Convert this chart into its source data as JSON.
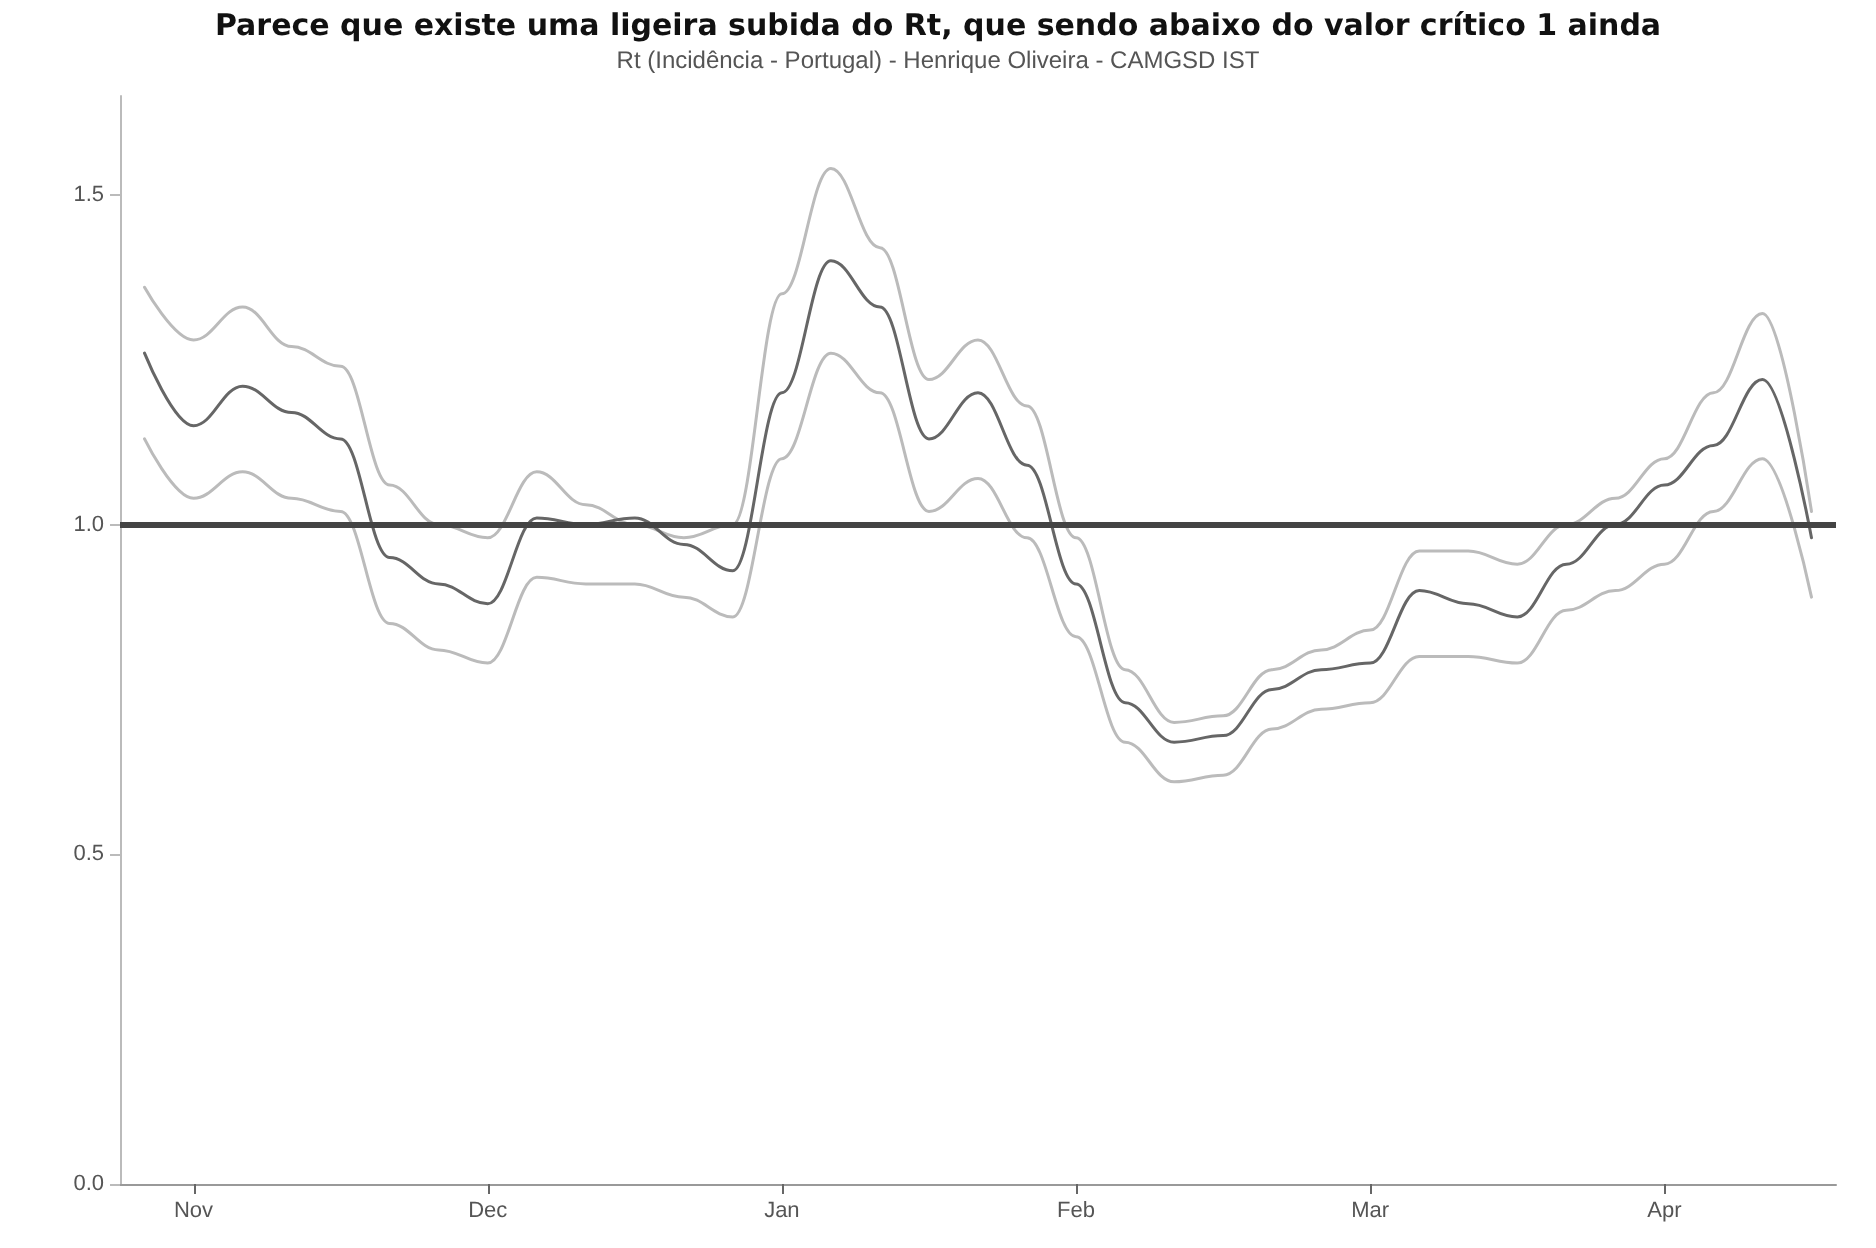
{
  "chart_data": {
    "type": "line",
    "title": "Parece que existe uma ligeira subida do Rt, que sendo abaixo do valor crítico 1 ainda",
    "subtitle": "Rt (Incidência - Portugal) - Henrique Oliveira - CAMGSD IST",
    "categories": [
      null,
      "Nov",
      null,
      null,
      null,
      null,
      null,
      "Dec",
      null,
      null,
      null,
      null,
      null,
      "Jan",
      null,
      null,
      null,
      null,
      null,
      "Feb",
      null,
      null,
      null,
      null,
      null,
      "Mar",
      null,
      null,
      null,
      null,
      null,
      "Apr",
      null,
      null,
      null
    ],
    "series": [
      {
        "color": "#bbbbbb",
        "values": [
          1.36,
          1.28,
          1.33,
          1.27,
          1.24,
          1.06,
          1.0,
          0.98,
          1.08,
          1.03,
          1.0,
          0.98,
          1.0,
          1.35,
          1.54,
          1.42,
          1.22,
          1.28,
          1.18,
          0.98,
          0.78,
          0.7,
          0.71,
          0.78,
          0.81,
          0.84,
          0.96,
          0.96,
          0.94,
          1.0,
          1.04,
          1.1,
          1.2,
          1.32,
          1.02
        ]
      },
      {
        "color": "#666666",
        "values": [
          1.26,
          1.15,
          1.21,
          1.17,
          1.13,
          0.95,
          0.91,
          0.88,
          1.01,
          1.0,
          1.01,
          0.97,
          0.93,
          1.2,
          1.4,
          1.33,
          1.13,
          1.2,
          1.09,
          0.91,
          0.73,
          0.67,
          0.68,
          0.75,
          0.78,
          0.79,
          0.9,
          0.88,
          0.86,
          0.94,
          1.0,
          1.06,
          1.12,
          1.22,
          0.98
        ]
      },
      {
        "color": "#bbbbbb",
        "values": [
          1.13,
          1.04,
          1.08,
          1.04,
          1.02,
          0.85,
          0.81,
          0.79,
          0.92,
          0.91,
          0.91,
          0.89,
          0.86,
          1.1,
          1.26,
          1.2,
          1.02,
          1.07,
          0.98,
          0.83,
          0.67,
          0.61,
          0.62,
          0.69,
          0.72,
          0.73,
          0.8,
          0.8,
          0.79,
          0.87,
          0.9,
          0.94,
          1.02,
          1.1,
          0.89
        ]
      }
    ],
    "ylim": [
      0,
      1.65
    ],
    "yticks": [
      {
        "value": 0,
        "label": "0.0"
      },
      {
        "value": 0.5,
        "label": "0.5"
      },
      {
        "value": 1,
        "label": "1.0"
      },
      {
        "value": 1.5,
        "label": "1.5"
      }
    ],
    "ref_lines": [
      {
        "axis": "y",
        "value": 1,
        "color": "#444444"
      }
    ],
    "grid": false,
    "marker": "none",
    "line_style": "solid"
  }
}
